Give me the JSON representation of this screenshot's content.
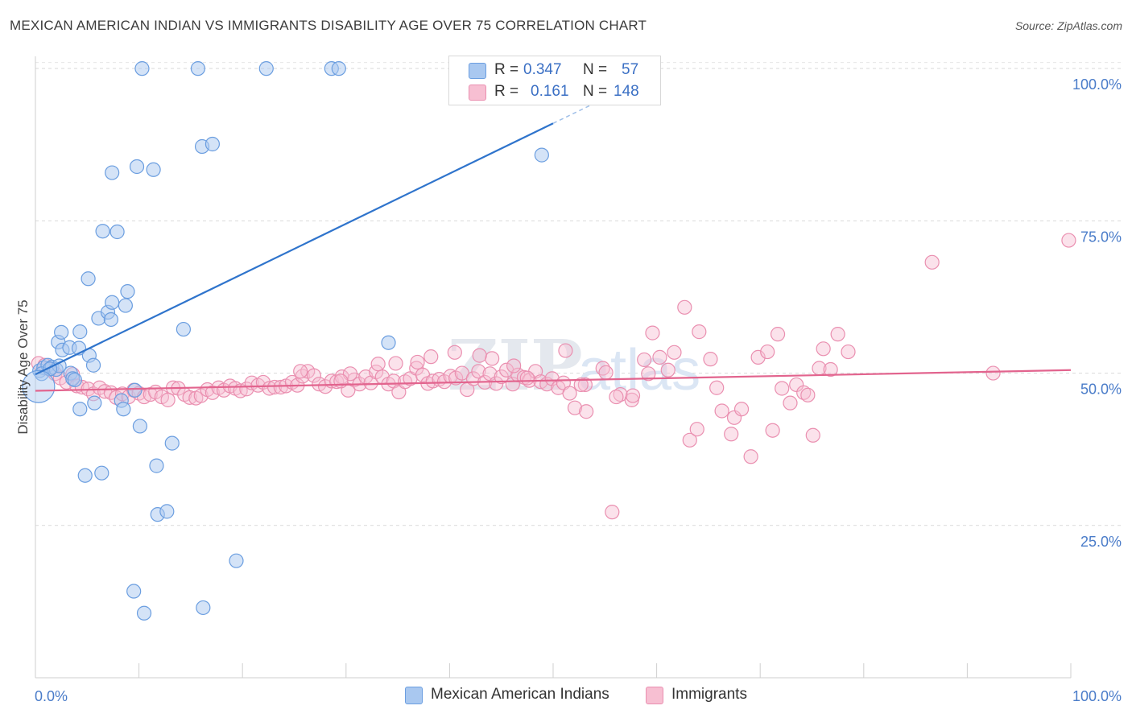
{
  "header": {
    "title": "MEXICAN AMERICAN INDIAN VS IMMIGRANTS DISABILITY AGE OVER 75 CORRELATION CHART",
    "source": "Source: ZipAtlas.com"
  },
  "legend_stats": {
    "series1": {
      "r_label": "R =",
      "r_value": "0.347",
      "n_label": "N =",
      "n_value": "57"
    },
    "series2": {
      "r_label": "R =",
      "r_value": "0.161",
      "n_label": "N =",
      "n_value": "148"
    }
  },
  "bottom_legend": {
    "series1": "Mexican American Indians",
    "series2": "Immigrants"
  },
  "colors": {
    "blue_fill": "#a9c8f0",
    "blue_stroke": "#6b9ee0",
    "blue_line": "#2f74cc",
    "pink_fill": "#f7bfd2",
    "pink_stroke": "#ea8fb0",
    "pink_line": "#e2648e",
    "axis_label": "#4a7cc9"
  },
  "chart_data": {
    "type": "scatter",
    "title": "MEXICAN AMERICAN INDIAN VS IMMIGRANTS DISABILITY AGE OVER 75 CORRELATION CHART",
    "xlabel": "",
    "ylabel": "Disability Age Over 75",
    "xlim": [
      0,
      100
    ],
    "ylim": [
      0,
      102
    ],
    "x_tick_labels": [
      "0.0%",
      "100.0%"
    ],
    "y_tick_labels": [
      "25.0%",
      "50.0%",
      "75.0%",
      "100.0%"
    ],
    "y_ticks": [
      25,
      50,
      75,
      100
    ],
    "grid": true,
    "watermark": "ZIPatlas",
    "series": [
      {
        "name": "Mexican American Indians",
        "r": 0.347,
        "n": 57,
        "trend": {
          "x0": 0,
          "y0": 49.8,
          "x1": 50,
          "y1": 91.0,
          "dash_to_x": 60
        },
        "points": [
          [
            0.4,
            50.4
          ],
          [
            0.8,
            50.9
          ],
          [
            1.2,
            51.3
          ],
          [
            1.6,
            51.0
          ],
          [
            2.0,
            50.6
          ],
          [
            2.3,
            51.2
          ],
          [
            0.6,
            49.9
          ],
          [
            1.4,
            50.7
          ],
          [
            2.2,
            55.1
          ],
          [
            2.5,
            56.7
          ],
          [
            2.6,
            53.8
          ],
          [
            3.3,
            54.2
          ],
          [
            4.2,
            54.1
          ],
          [
            4.3,
            56.8
          ],
          [
            3.4,
            50.0
          ],
          [
            3.6,
            49.1
          ],
          [
            3.8,
            48.9
          ],
          [
            5.2,
            52.9
          ],
          [
            5.6,
            51.3
          ],
          [
            6.1,
            59.0
          ],
          [
            7.0,
            60.0
          ],
          [
            7.3,
            58.8
          ],
          [
            7.4,
            61.6
          ],
          [
            8.7,
            61.1
          ],
          [
            8.9,
            63.4
          ],
          [
            5.1,
            65.5
          ],
          [
            6.5,
            73.3
          ],
          [
            7.9,
            73.2
          ],
          [
            7.4,
            82.9
          ],
          [
            9.8,
            83.9
          ],
          [
            11.4,
            83.4
          ],
          [
            10.3,
            100.0
          ],
          [
            15.7,
            100.0
          ],
          [
            22.3,
            100.0
          ],
          [
            28.6,
            100.0
          ],
          [
            29.3,
            100.0
          ],
          [
            16.1,
            87.2
          ],
          [
            17.1,
            87.6
          ],
          [
            48.9,
            85.8
          ],
          [
            14.3,
            57.2
          ],
          [
            34.1,
            55.0
          ],
          [
            4.3,
            44.1
          ],
          [
            5.7,
            45.1
          ],
          [
            8.3,
            45.5
          ],
          [
            8.5,
            44.1
          ],
          [
            9.6,
            47.2
          ],
          [
            10.1,
            41.3
          ],
          [
            13.2,
            38.5
          ],
          [
            11.7,
            34.8
          ],
          [
            4.8,
            33.2
          ],
          [
            6.4,
            33.6
          ],
          [
            11.8,
            26.8
          ],
          [
            12.7,
            27.3
          ],
          [
            19.4,
            19.2
          ],
          [
            9.5,
            14.2
          ],
          [
            10.5,
            10.6
          ],
          [
            16.2,
            11.5
          ]
        ]
      },
      {
        "name": "Immigrants",
        "r": 0.161,
        "n": 148,
        "trend": {
          "x0": 0,
          "y0": 47.1,
          "x1": 100,
          "y1": 50.5
        },
        "points": [
          [
            0.3,
            51.6
          ],
          [
            0.9,
            51.3
          ],
          [
            1.4,
            50.6
          ],
          [
            1.9,
            49.9
          ],
          [
            2.4,
            49.2
          ],
          [
            3.0,
            48.5
          ],
          [
            3.6,
            49.8
          ],
          [
            4.0,
            47.9
          ],
          [
            4.5,
            47.7
          ],
          [
            5.1,
            47.4
          ],
          [
            5.6,
            46.6
          ],
          [
            6.2,
            47.6
          ],
          [
            6.7,
            47.0
          ],
          [
            7.3,
            46.8
          ],
          [
            7.8,
            46.0
          ],
          [
            8.4,
            46.6
          ],
          [
            9.0,
            46.1
          ],
          [
            9.5,
            47.2
          ],
          [
            10.0,
            46.7
          ],
          [
            10.5,
            46.1
          ],
          [
            11.1,
            46.5
          ],
          [
            11.6,
            46.9
          ],
          [
            12.2,
            46.1
          ],
          [
            12.8,
            45.6
          ],
          [
            13.3,
            47.6
          ],
          [
            13.8,
            47.5
          ],
          [
            14.4,
            46.5
          ],
          [
            14.9,
            46.0
          ],
          [
            15.5,
            45.9
          ],
          [
            16.0,
            46.3
          ],
          [
            16.6,
            47.3
          ],
          [
            17.1,
            46.8
          ],
          [
            17.7,
            47.6
          ],
          [
            18.2,
            47.2
          ],
          [
            18.8,
            47.9
          ],
          [
            19.3,
            47.5
          ],
          [
            19.8,
            47.1
          ],
          [
            20.4,
            47.4
          ],
          [
            20.9,
            48.4
          ],
          [
            21.5,
            48.0
          ],
          [
            22.0,
            48.5
          ],
          [
            22.6,
            47.5
          ],
          [
            23.1,
            47.7
          ],
          [
            23.7,
            47.7
          ],
          [
            24.2,
            47.9
          ],
          [
            24.8,
            48.5
          ],
          [
            25.3,
            48.0
          ],
          [
            25.8,
            49.5
          ],
          [
            26.3,
            50.3
          ],
          [
            26.9,
            49.6
          ],
          [
            27.4,
            48.2
          ],
          [
            28.0,
            47.8
          ],
          [
            28.6,
            48.7
          ],
          [
            29.1,
            48.6
          ],
          [
            29.6,
            49.4
          ],
          [
            30.2,
            47.2
          ],
          [
            30.8,
            48.9
          ],
          [
            31.3,
            48.2
          ],
          [
            31.9,
            49.4
          ],
          [
            32.4,
            48.4
          ],
          [
            32.9,
            50.2
          ],
          [
            33.5,
            49.4
          ],
          [
            34.1,
            48.2
          ],
          [
            34.6,
            48.7
          ],
          [
            35.1,
            46.9
          ],
          [
            35.7,
            48.6
          ],
          [
            36.2,
            49.1
          ],
          [
            36.8,
            50.8
          ],
          [
            37.4,
            49.7
          ],
          [
            37.9,
            48.3
          ],
          [
            38.4,
            48.7
          ],
          [
            39.0,
            49.0
          ],
          [
            39.5,
            48.6
          ],
          [
            40.1,
            49.5
          ],
          [
            40.6,
            49.2
          ],
          [
            41.2,
            50.0
          ],
          [
            41.7,
            47.3
          ],
          [
            42.3,
            49.1
          ],
          [
            42.8,
            50.3
          ],
          [
            43.4,
            48.5
          ],
          [
            43.9,
            49.9
          ],
          [
            44.5,
            48.3
          ],
          [
            45.0,
            49.4
          ],
          [
            45.5,
            50.5
          ],
          [
            46.1,
            48.2
          ],
          [
            46.6,
            49.7
          ],
          [
            47.2,
            49.3
          ],
          [
            47.7,
            48.8
          ],
          [
            48.3,
            50.3
          ],
          [
            48.8,
            48.6
          ],
          [
            49.4,
            48.2
          ],
          [
            49.9,
            49.1
          ],
          [
            50.5,
            47.6
          ],
          [
            51.0,
            48.4
          ],
          [
            51.6,
            46.7
          ],
          [
            52.1,
            44.3
          ],
          [
            53.2,
            43.7
          ],
          [
            54.8,
            50.8
          ],
          [
            55.1,
            50.1
          ],
          [
            56.5,
            46.5
          ],
          [
            57.6,
            45.6
          ],
          [
            58.8,
            52.2
          ],
          [
            59.2,
            49.9
          ],
          [
            59.6,
            56.6
          ],
          [
            60.3,
            52.6
          ],
          [
            61.1,
            50.5
          ],
          [
            61.7,
            53.4
          ],
          [
            62.7,
            60.8
          ],
          [
            63.2,
            39.0
          ],
          [
            63.9,
            40.8
          ],
          [
            64.1,
            56.8
          ],
          [
            65.2,
            52.3
          ],
          [
            65.8,
            47.6
          ],
          [
            66.3,
            43.8
          ],
          [
            67.2,
            40.0
          ],
          [
            67.5,
            42.7
          ],
          [
            68.2,
            44.1
          ],
          [
            69.1,
            36.3
          ],
          [
            69.8,
            52.6
          ],
          [
            70.7,
            53.5
          ],
          [
            71.2,
            40.6
          ],
          [
            71.7,
            56.4
          ],
          [
            72.1,
            47.5
          ],
          [
            72.9,
            45.1
          ],
          [
            73.5,
            48.1
          ],
          [
            74.2,
            46.8
          ],
          [
            74.6,
            46.4
          ],
          [
            75.1,
            39.8
          ],
          [
            75.7,
            50.8
          ],
          [
            76.1,
            54.0
          ],
          [
            76.8,
            50.6
          ],
          [
            77.5,
            56.4
          ],
          [
            78.5,
            53.5
          ],
          [
            86.6,
            68.2
          ],
          [
            92.5,
            50.0
          ],
          [
            99.8,
            71.8
          ],
          [
            57.7,
            46.3
          ],
          [
            56.1,
            46.1
          ],
          [
            55.7,
            27.2
          ],
          [
            53.1,
            48.1
          ],
          [
            52.7,
            48.1
          ],
          [
            51.2,
            53.7
          ],
          [
            47.5,
            49.2
          ],
          [
            46.2,
            51.2
          ],
          [
            44.1,
            52.4
          ],
          [
            42.9,
            52.9
          ],
          [
            40.5,
            53.4
          ],
          [
            38.2,
            52.7
          ],
          [
            36.9,
            51.8
          ],
          [
            34.8,
            51.6
          ],
          [
            33.1,
            51.5
          ],
          [
            30.4,
            49.9
          ],
          [
            29.5,
            48.7
          ],
          [
            25.6,
            50.3
          ]
        ]
      }
    ]
  }
}
